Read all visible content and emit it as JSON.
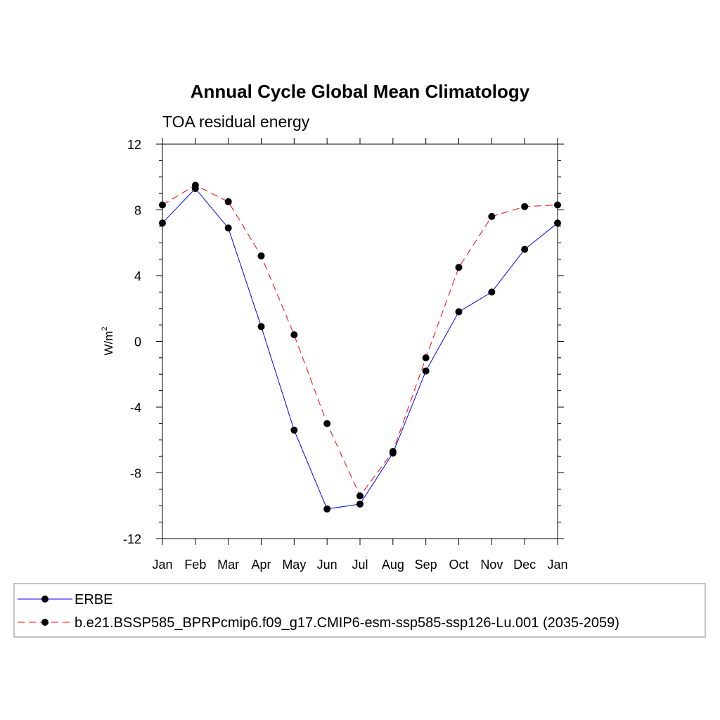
{
  "chart_data": {
    "type": "line",
    "title": "Annual Cycle Global Mean Climatology",
    "subtitle": "TOA residual energy",
    "ylabel": "W/m",
    "ylabel_sup": "2",
    "xlabel": "",
    "categories": [
      "Jan",
      "Feb",
      "Mar",
      "Apr",
      "May",
      "Jun",
      "Jul",
      "Aug",
      "Sep",
      "Oct",
      "Nov",
      "Dec",
      "Jan"
    ],
    "ylim": [
      -12,
      12
    ],
    "yticks": [
      "12",
      "8",
      "4",
      "0",
      "-4",
      "-8",
      "-12"
    ],
    "ytick_values": [
      12,
      8,
      4,
      0,
      -4,
      -8,
      -12
    ],
    "grid": false,
    "legend_position": "bottom",
    "series": [
      {
        "name": "ERBE",
        "color": "#0000ff",
        "style": "solid",
        "values": [
          7.2,
          9.3,
          6.9,
          0.9,
          -5.4,
          -10.2,
          -9.9,
          -6.8,
          -1.8,
          1.8,
          3.0,
          5.6,
          7.2
        ]
      },
      {
        "name": "b.e21.BSSP585_BPRPcmip6.f09_g17.CMIP6-esm-ssp585-ssp126-Lu.001 (2035-2059)",
        "color": "#ff0000",
        "style": "dashed",
        "values": [
          8.3,
          9.5,
          8.5,
          5.2,
          0.4,
          -5.0,
          -9.4,
          -6.7,
          -1.0,
          4.5,
          7.6,
          8.2,
          8.3
        ]
      }
    ]
  }
}
